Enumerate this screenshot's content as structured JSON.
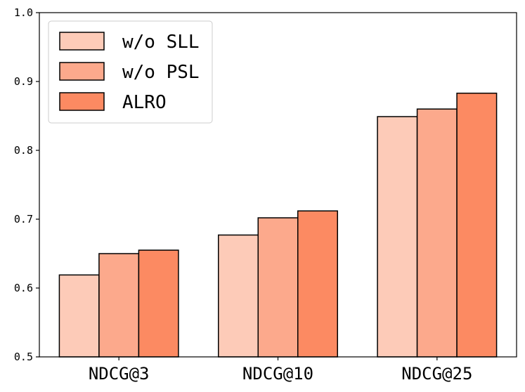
{
  "chart_data": {
    "type": "bar",
    "categories": [
      "NDCG@3",
      "NDCG@10",
      "NDCG@25"
    ],
    "series": [
      {
        "name": "w/o SLL",
        "values": [
          0.619,
          0.677,
          0.849
        ],
        "color": "#fdcbb8"
      },
      {
        "name": "w/o PSL",
        "values": [
          0.65,
          0.702,
          0.86
        ],
        "color": "#fca98c"
      },
      {
        "name": "ALRO",
        "values": [
          0.655,
          0.712,
          0.883
        ],
        "color": "#fc8a62"
      }
    ],
    "ylim": [
      0.5,
      1.0
    ],
    "yticks": [
      "0.5",
      "0.6",
      "0.7",
      "0.8",
      "0.9",
      "1.0"
    ],
    "title": "",
    "xlabel": "",
    "ylabel": "",
    "legend_position": "top-left",
    "grid": false
  }
}
